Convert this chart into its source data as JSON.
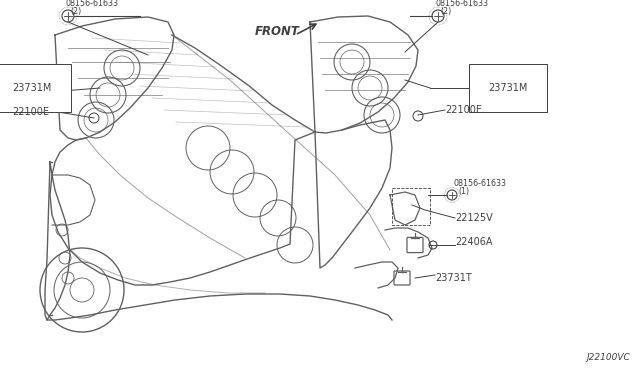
{
  "diagram_code": "J22100VC",
  "background_color": "#ffffff",
  "line_color": "#404040",
  "text_color": "#404040",
  "front_label": "FRONT",
  "figsize": [
    6.4,
    3.72
  ],
  "dpi": 100,
  "engine_color": "#606060",
  "label_fontsize": 7.0,
  "small_fontsize": 5.8,
  "labels_left": {
    "bolt_label": "08156-61633",
    "bolt_sub": "(2)",
    "part1": "23731M",
    "part2": "22100E"
  },
  "labels_right_top": {
    "bolt_label": "08156-61633",
    "bolt_sub": "(2)",
    "part1": "23731M",
    "part2": "22100E"
  },
  "labels_right_mid": {
    "bolt_label": "08156-61633",
    "bolt_sub": "(1)",
    "part1": "22125V",
    "part2": "22406A",
    "part3": "23731T"
  }
}
